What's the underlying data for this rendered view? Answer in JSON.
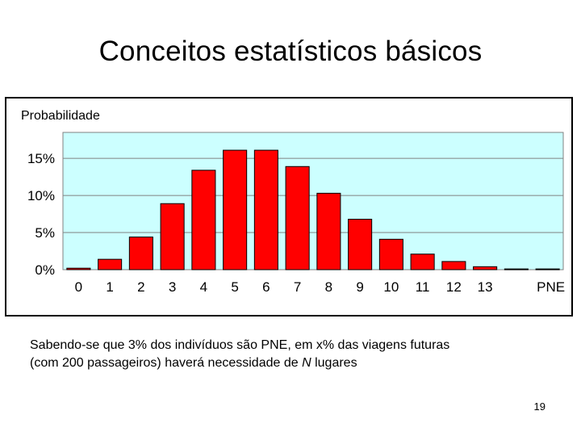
{
  "slide": {
    "title": "Conceitos estatísticos básicos",
    "caption_line1": "Sabendo-se que 3% dos indivíduos são PNE, em x% das viagens futuras",
    "caption_line2_prefix": "(com 200 passageiros) haverá necessidade de ",
    "caption_line2_var": "N",
    "caption_line2_suffix": " lugares",
    "page_number": "19"
  },
  "chart_data": {
    "type": "bar",
    "title": "",
    "ylabel": "Probabilidade",
    "xlabel": "",
    "categories": [
      "0",
      "1",
      "2",
      "3",
      "4",
      "5",
      "6",
      "7",
      "8",
      "9",
      "10",
      "11",
      "12",
      "13",
      "",
      "PNE"
    ],
    "values": [
      0.2,
      1.4,
      4.4,
      8.9,
      13.4,
      16.1,
      16.1,
      13.9,
      10.3,
      6.8,
      4.1,
      2.1,
      1.1,
      0.4,
      0.1,
      0.1
    ],
    "ylim": [
      0,
      18.5
    ],
    "yticks": [
      0,
      5,
      10,
      15
    ],
    "ytick_labels": [
      "0%",
      "5%",
      "10%",
      "15%"
    ],
    "grid": true,
    "colors": {
      "bar_fill": "#ff0000",
      "bar_stroke": "#000000",
      "plot_bg": "#ccffff",
      "gridline": "#808080"
    }
  }
}
